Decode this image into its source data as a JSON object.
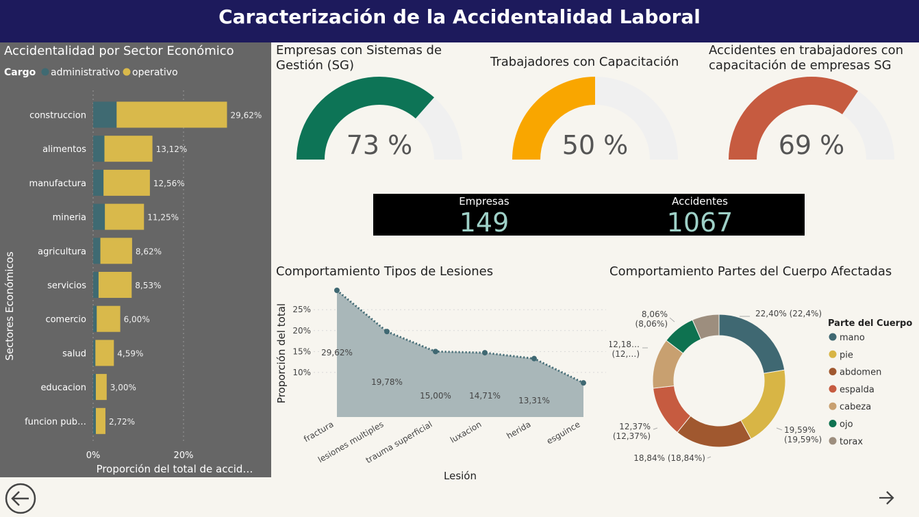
{
  "header": {
    "title": "Caracterización de la Accidentalidad Laboral"
  },
  "sector_chart": {
    "title": "Accidentalidad por Sector Económico",
    "legend_title": "Cargo",
    "ylabel": "Sectores Económicos",
    "xlabel": "Proporción del total de accid…",
    "x_ticks": [
      "0%",
      "20%"
    ]
  },
  "gauges": [
    {
      "title_lines": [
        "Empresas con Sistemas de",
        "Gestión (SG)"
      ],
      "value": 73,
      "label": "73 %",
      "color": "#0d7456"
    },
    {
      "title_lines": [
        "Trabajadores con Capacitación"
      ],
      "value": 50,
      "label": "50 %",
      "color": "#f9a600"
    },
    {
      "title_lines": [
        "Accidentes en trabajadores con",
        "capacitación de empresas SG"
      ],
      "value": 69,
      "label": "69 %",
      "color": "#c65b40"
    }
  ],
  "kpis": {
    "empresas_label": "Empresas",
    "empresas_value": "149",
    "accidentes_label": "Accidentes",
    "accidentes_value": "1067"
  },
  "lesiones_chart": {
    "title": "Comportamiento Tipos de Lesiones",
    "ylabel": "Proporción del total",
    "xlabel": "Lesión"
  },
  "cuerpo_chart": {
    "title": "Comportamiento Partes del Cuerpo Afectadas",
    "legend_title": "Parte del Cuerpo"
  },
  "chart_data": [
    {
      "type": "bar",
      "orientation": "horizontal",
      "stacked": true,
      "categories": [
        "construccion",
        "alimentos",
        "manufactura",
        "mineria",
        "agricultura",
        "servicios",
        "comercio",
        "salud",
        "educacion",
        "funcion pub…"
      ],
      "series": [
        {
          "name": "administrativo",
          "color": "#3f6a72",
          "values": [
            5.2,
            2.5,
            2.3,
            2.6,
            1.6,
            1.2,
            0.8,
            0.5,
            0.6,
            0.6
          ]
        },
        {
          "name": "operativo",
          "color": "#d9b94b",
          "values": [
            24.42,
            10.62,
            10.26,
            8.65,
            7.02,
            7.33,
            5.2,
            4.09,
            2.4,
            2.12
          ]
        }
      ],
      "total_labels": [
        "29,62%",
        "13,12%",
        "12,56%",
        "11,25%",
        "8,62%",
        "8,53%",
        "6,00%",
        "4,59%",
        "3,00%",
        "2,72%"
      ],
      "xlim": [
        0,
        40
      ],
      "legend_position": "top-left"
    },
    {
      "type": "area",
      "categories": [
        "fractura",
        "lesiones multiples",
        "trauma superficial",
        "luxacion",
        "herida",
        "esguince"
      ],
      "values": [
        29.62,
        19.78,
        15.0,
        14.71,
        13.31,
        7.5
      ],
      "data_labels": [
        "29,62%",
        "19,78%",
        "15,00%",
        "14,71%",
        "13,31%",
        ""
      ],
      "y_ticks": [
        "25%",
        "20%",
        "15%",
        "10%"
      ],
      "ylim": [
        7,
        30
      ],
      "grid": true
    },
    {
      "type": "pie",
      "donut": true,
      "slices": [
        {
          "name": "mano",
          "value": 22.4,
          "color": "#3f6872",
          "label": "22,40% (22,4%)"
        },
        {
          "name": "pie",
          "value": 19.59,
          "color": "#d8b545",
          "label_lines": [
            "19,59%",
            "(19,59%)"
          ]
        },
        {
          "name": "abdomen",
          "value": 18.84,
          "color": "#a0582f",
          "label": "18,84% (18,84%)"
        },
        {
          "name": "espalda",
          "value": 12.37,
          "color": "#c65b40",
          "label_lines": [
            "12,37%",
            "(12,37%)"
          ]
        },
        {
          "name": "cabeza",
          "value": 12.18,
          "color": "#c8a070",
          "label_lines": [
            "12,18…",
            "(12,…)"
          ]
        },
        {
          "name": "ojo",
          "value": 8.06,
          "color": "#0e7250",
          "label_lines": [
            "8,06%",
            "(8,06%)"
          ]
        },
        {
          "name": "torax",
          "value": 6.56,
          "color": "#9d8e7e"
        }
      ],
      "legend_position": "right"
    }
  ]
}
